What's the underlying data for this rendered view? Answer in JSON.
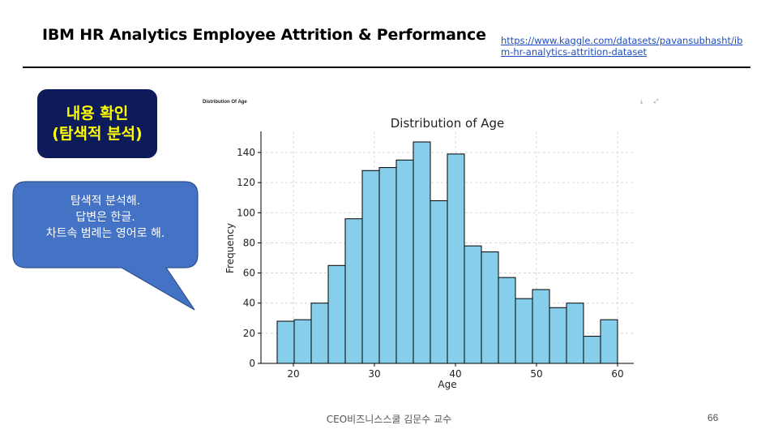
{
  "slide": {
    "title": "IBM HR Analytics Employee Attrition & Performance",
    "source_link": "https://www.kaggle.com/datasets/pavansubhasht/ibm-hr-analytics-attrition-dataset",
    "badge_line1": "내용 확인",
    "badge_line2": "(탐색적 분석)",
    "callout_lines": [
      "탐색적 분석해.",
      "답변은 한글.",
      "차트속 범례는 영어로 해."
    ],
    "chart_caption": "Distribution Of Age",
    "chart_tools": "⤓ ⤢",
    "footer": "CEO비즈니스스쿨 김문수 교수",
    "page_number": "66",
    "colors": {
      "badge_bg": "#0d1b5a",
      "badge_text": "#ffff00",
      "callout_bg": "#4472c4",
      "bar_fill": "#87ceeb"
    }
  },
  "chart_data": {
    "type": "bar",
    "title": "Distribution of Age",
    "xlabel": "Age",
    "ylabel": "Frequency",
    "bin_edges": [
      18,
      20.1,
      22.2,
      24.3,
      26.4,
      28.5,
      30.6,
      32.7,
      34.8,
      36.9,
      39,
      41.1,
      43.2,
      45.3,
      47.4,
      49.5,
      51.6,
      53.7,
      55.8,
      57.9,
      60
    ],
    "values": [
      28,
      29,
      40,
      65,
      96,
      128,
      130,
      135,
      147,
      108,
      139,
      78,
      74,
      57,
      43,
      49,
      37,
      40,
      18,
      29
    ],
    "xticks": [
      20,
      30,
      40,
      50,
      60
    ],
    "yticks": [
      0,
      20,
      40,
      60,
      80,
      100,
      120,
      140
    ],
    "xlim": [
      16,
      62
    ],
    "ylim": [
      0,
      154
    ],
    "grid": true
  }
}
